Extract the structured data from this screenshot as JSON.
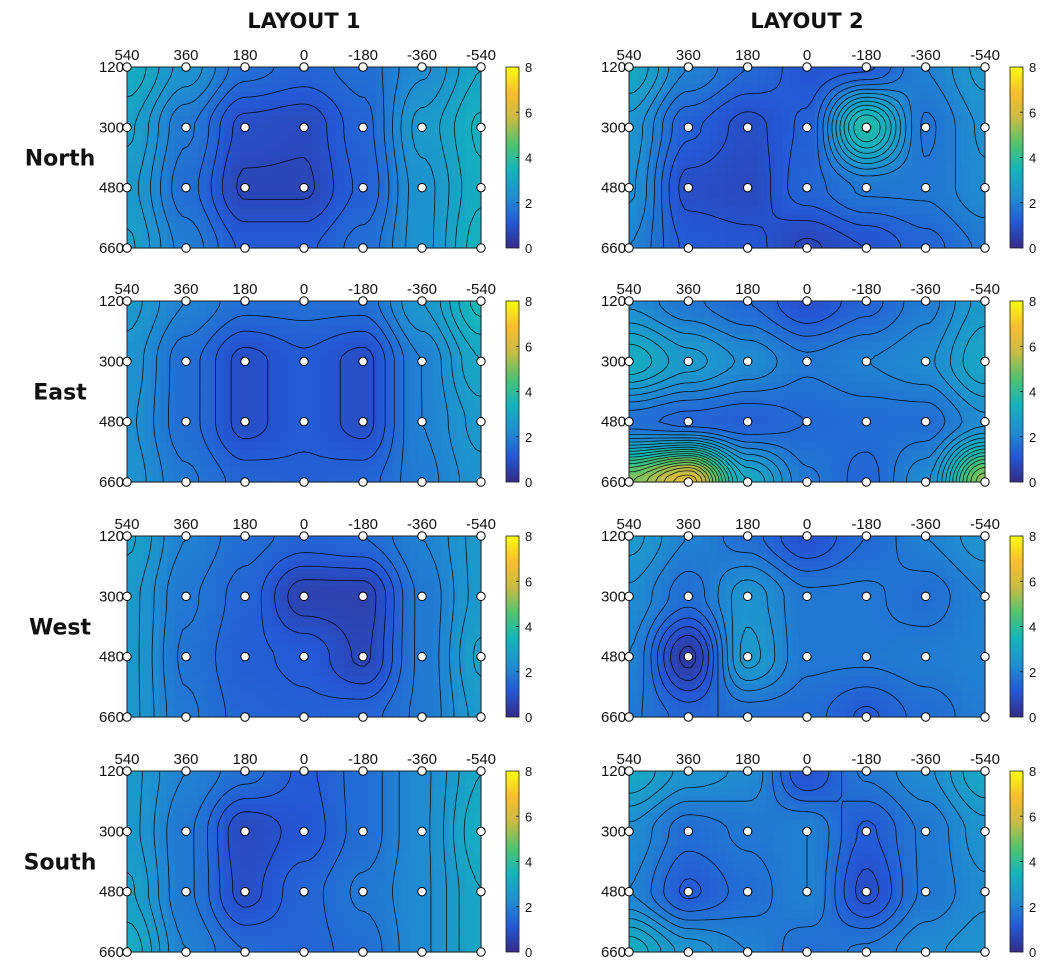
{
  "figure": {
    "column_titles": [
      "LAYOUT 1",
      "LAYOUT 2"
    ],
    "row_labels": [
      "North",
      "East",
      "West",
      "South"
    ],
    "colormap": [
      "#352a87",
      "#2458d6",
      "#1f8fd0",
      "#12b4bd",
      "#4ec36f",
      "#c6bc45",
      "#fbbd2c",
      "#f9fb0e"
    ],
    "contour_line_color": "#000000",
    "marker_fill": "#ffffff"
  },
  "chart_data": [
    {
      "type": "heatmap",
      "panel": "North / LAYOUT 1",
      "x_ticks": [
        "540",
        "360",
        "180",
        "0",
        "-180",
        "-360",
        "-540"
      ],
      "y_ticks": [
        "120",
        "300",
        "480",
        "660"
      ],
      "x": [
        540,
        360,
        180,
        0,
        -180,
        -360,
        -540
      ],
      "y": [
        120,
        300,
        480,
        660
      ],
      "z": [
        [
          3.2,
          2.4,
          1.6,
          1.4,
          1.6,
          2.2,
          3.0
        ],
        [
          2.8,
          1.8,
          0.9,
          0.8,
          1.4,
          2.6,
          3.3
        ],
        [
          2.6,
          1.6,
          0.7,
          0.7,
          1.3,
          2.4,
          3.2
        ],
        [
          2.8,
          1.9,
          1.2,
          1.2,
          1.6,
          2.4,
          3.4
        ]
      ],
      "colorbar": {
        "range": [
          0,
          8
        ],
        "ticks": [
          "0",
          "2",
          "4",
          "6",
          "8"
        ]
      }
    },
    {
      "type": "heatmap",
      "panel": "North / LAYOUT 2",
      "x_ticks": [
        "540",
        "360",
        "180",
        "0",
        "-180",
        "-360",
        "-540"
      ],
      "y_ticks": [
        "120",
        "300",
        "480",
        "660"
      ],
      "x": [
        540,
        360,
        180,
        0,
        -180,
        -360,
        -540
      ],
      "y": [
        120,
        300,
        480,
        660
      ],
      "z": [
        [
          3.0,
          2.0,
          1.5,
          1.1,
          1.2,
          2.0,
          2.6
        ],
        [
          2.4,
          1.3,
          0.9,
          1.3,
          3.8,
          1.7,
          2.3
        ],
        [
          2.3,
          0.9,
          0.8,
          1.4,
          1.8,
          1.8,
          2.2
        ],
        [
          2.0,
          1.2,
          1.1,
          0.7,
          1.0,
          1.4,
          1.8
        ]
      ],
      "colorbar": {
        "range": [
          0,
          8
        ],
        "ticks": [
          "0",
          "2",
          "4",
          "6",
          "8"
        ]
      }
    },
    {
      "type": "heatmap",
      "panel": "East / LAYOUT 1",
      "x_ticks": [
        "540",
        "360",
        "180",
        "0",
        "-180",
        "-360",
        "-540"
      ],
      "y_ticks": [
        "120",
        "300",
        "480",
        "660"
      ],
      "x": [
        540,
        360,
        180,
        0,
        -180,
        -360,
        -540
      ],
      "y": [
        120,
        300,
        480,
        660
      ],
      "z": [
        [
          2.6,
          2.0,
          1.6,
          1.6,
          1.6,
          2.5,
          3.6
        ],
        [
          2.4,
          1.6,
          0.9,
          1.2,
          0.9,
          2.0,
          3.0
        ],
        [
          2.3,
          1.6,
          0.9,
          1.2,
          0.9,
          2.0,
          2.6
        ],
        [
          2.4,
          1.8,
          1.4,
          1.3,
          1.4,
          1.9,
          2.4
        ]
      ],
      "colorbar": {
        "range": [
          0,
          8
        ],
        "ticks": [
          "0",
          "2",
          "4",
          "6",
          "8"
        ]
      }
    },
    {
      "type": "heatmap",
      "panel": "East / LAYOUT 2",
      "x_ticks": [
        "540",
        "360",
        "180",
        "0",
        "-180",
        "-360",
        "-540"
      ],
      "y_ticks": [
        "120",
        "300",
        "480",
        "660"
      ],
      "x": [
        540,
        360,
        180,
        0,
        -180,
        -360,
        -540
      ],
      "y": [
        120,
        300,
        480,
        660
      ],
      "z": [
        [
          2.2,
          1.8,
          1.5,
          1.0,
          1.4,
          1.9,
          2.6
        ],
        [
          3.2,
          2.6,
          2.2,
          1.8,
          2.0,
          2.2,
          3.0
        ],
        [
          1.6,
          1.4,
          1.3,
          1.5,
          1.6,
          1.6,
          2.2
        ],
        [
          5.0,
          6.2,
          3.0,
          1.8,
          1.4,
          2.2,
          5.2
        ]
      ],
      "colorbar": {
        "range": [
          0,
          8
        ],
        "ticks": [
          "0",
          "2",
          "4",
          "6",
          "8"
        ]
      }
    },
    {
      "type": "heatmap",
      "panel": "West / LAYOUT 1",
      "x_ticks": [
        "540",
        "360",
        "180",
        "0",
        "-180",
        "-360",
        "-540"
      ],
      "y_ticks": [
        "120",
        "300",
        "480",
        "660"
      ],
      "x": [
        540,
        360,
        180,
        0,
        -180,
        -360,
        -540
      ],
      "y": [
        120,
        300,
        480,
        660
      ],
      "z": [
        [
          2.8,
          2.0,
          1.6,
          1.4,
          1.5,
          2.0,
          2.6
        ],
        [
          2.6,
          1.8,
          1.4,
          0.6,
          0.6,
          1.8,
          2.6
        ],
        [
          2.6,
          1.7,
          1.3,
          1.2,
          0.7,
          1.8,
          2.8
        ],
        [
          2.6,
          1.8,
          1.4,
          1.3,
          1.4,
          1.8,
          2.6
        ]
      ],
      "colorbar": {
        "range": [
          0,
          8
        ],
        "ticks": [
          "0",
          "2",
          "4",
          "6",
          "8"
        ]
      }
    },
    {
      "type": "heatmap",
      "panel": "West / LAYOUT 2",
      "x_ticks": [
        "540",
        "360",
        "180",
        "0",
        "-180",
        "-360",
        "-540"
      ],
      "y_ticks": [
        "120",
        "300",
        "480",
        "660"
      ],
      "x": [
        540,
        360,
        180,
        0,
        -180,
        -360,
        -540
      ],
      "y": [
        120,
        300,
        480,
        660
      ],
      "z": [
        [
          2.6,
          2.0,
          1.6,
          1.0,
          1.5,
          2.0,
          2.4
        ],
        [
          2.2,
          1.6,
          2.4,
          1.8,
          1.8,
          1.6,
          2.0
        ],
        [
          2.0,
          0.4,
          2.6,
          1.8,
          1.8,
          1.9,
          2.0
        ],
        [
          1.8,
          1.4,
          1.6,
          1.6,
          1.2,
          1.6,
          1.9
        ]
      ],
      "colorbar": {
        "range": [
          0,
          8
        ],
        "ticks": [
          "0",
          "2",
          "4",
          "6",
          "8"
        ]
      }
    },
    {
      "type": "heatmap",
      "panel": "South / LAYOUT 1",
      "x_ticks": [
        "540",
        "360",
        "180",
        "0",
        "-180",
        "-360",
        "-540"
      ],
      "y_ticks": [
        "120",
        "300",
        "480",
        "660"
      ],
      "x": [
        540,
        360,
        180,
        0,
        -180,
        -360,
        -540
      ],
      "y": [
        120,
        300,
        480,
        660
      ],
      "z": [
        [
          2.6,
          2.0,
          1.6,
          1.2,
          1.6,
          2.2,
          3.0
        ],
        [
          2.6,
          1.8,
          0.8,
          1.1,
          1.6,
          2.2,
          3.2
        ],
        [
          2.8,
          1.8,
          0.9,
          1.4,
          1.8,
          2.2,
          3.0
        ],
        [
          3.2,
          2.0,
          1.5,
          1.4,
          1.6,
          2.2,
          3.0
        ]
      ],
      "colorbar": {
        "range": [
          0,
          8
        ],
        "ticks": [
          "0",
          "2",
          "4",
          "6",
          "8"
        ]
      }
    },
    {
      "type": "heatmap",
      "panel": "South / LAYOUT 2",
      "x_ticks": [
        "540",
        "360",
        "180",
        "0",
        "-180",
        "-360",
        "-540"
      ],
      "y_ticks": [
        "120",
        "300",
        "480",
        "660"
      ],
      "x": [
        540,
        360,
        180,
        0,
        -180,
        -360,
        -540
      ],
      "y": [
        120,
        300,
        480,
        660
      ],
      "z": [
        [
          3.0,
          2.4,
          2.2,
          1.0,
          1.8,
          2.2,
          3.0
        ],
        [
          2.2,
          1.6,
          1.8,
          2.0,
          1.2,
          1.8,
          2.4
        ],
        [
          2.0,
          1.2,
          1.6,
          2.0,
          0.9,
          1.8,
          2.2
        ],
        [
          3.2,
          2.4,
          2.0,
          1.6,
          1.8,
          2.2,
          2.4
        ]
      ],
      "colorbar": {
        "range": [
          0,
          8
        ],
        "ticks": [
          "0",
          "2",
          "4",
          "6",
          "8"
        ]
      }
    }
  ]
}
